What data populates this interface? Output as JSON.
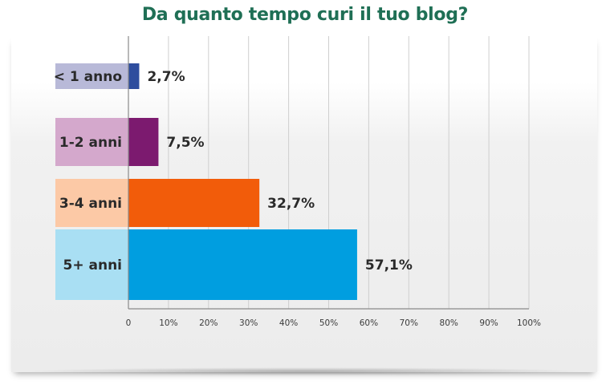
{
  "chart_data": {
    "type": "bar",
    "orientation": "horizontal",
    "title": "Da quanto tempo curi il tuo blog?",
    "categories": [
      "< 1 anno",
      "1-2 anni",
      "3-4 anni",
      "5+ anni"
    ],
    "values": [
      2.7,
      7.5,
      32.7,
      57.1
    ],
    "value_labels": [
      "2,7%",
      "7,5%",
      "32,7%",
      "57,1%"
    ],
    "bar_colors": [
      "#2e4d9e",
      "#7c1a6f",
      "#f25c0a",
      "#009ee0"
    ],
    "label_box_colors": [
      "#b8b9d8",
      "#d4a8cc",
      "#fcc9a6",
      "#a9dff3"
    ],
    "xlim": [
      0,
      100
    ],
    "xticks": [
      "0",
      "10%",
      "20%",
      "30%",
      "40%",
      "50%",
      "60%",
      "70%",
      "80%",
      "90%",
      "100%"
    ],
    "grid": true,
    "xlabel": "",
    "ylabel": ""
  }
}
